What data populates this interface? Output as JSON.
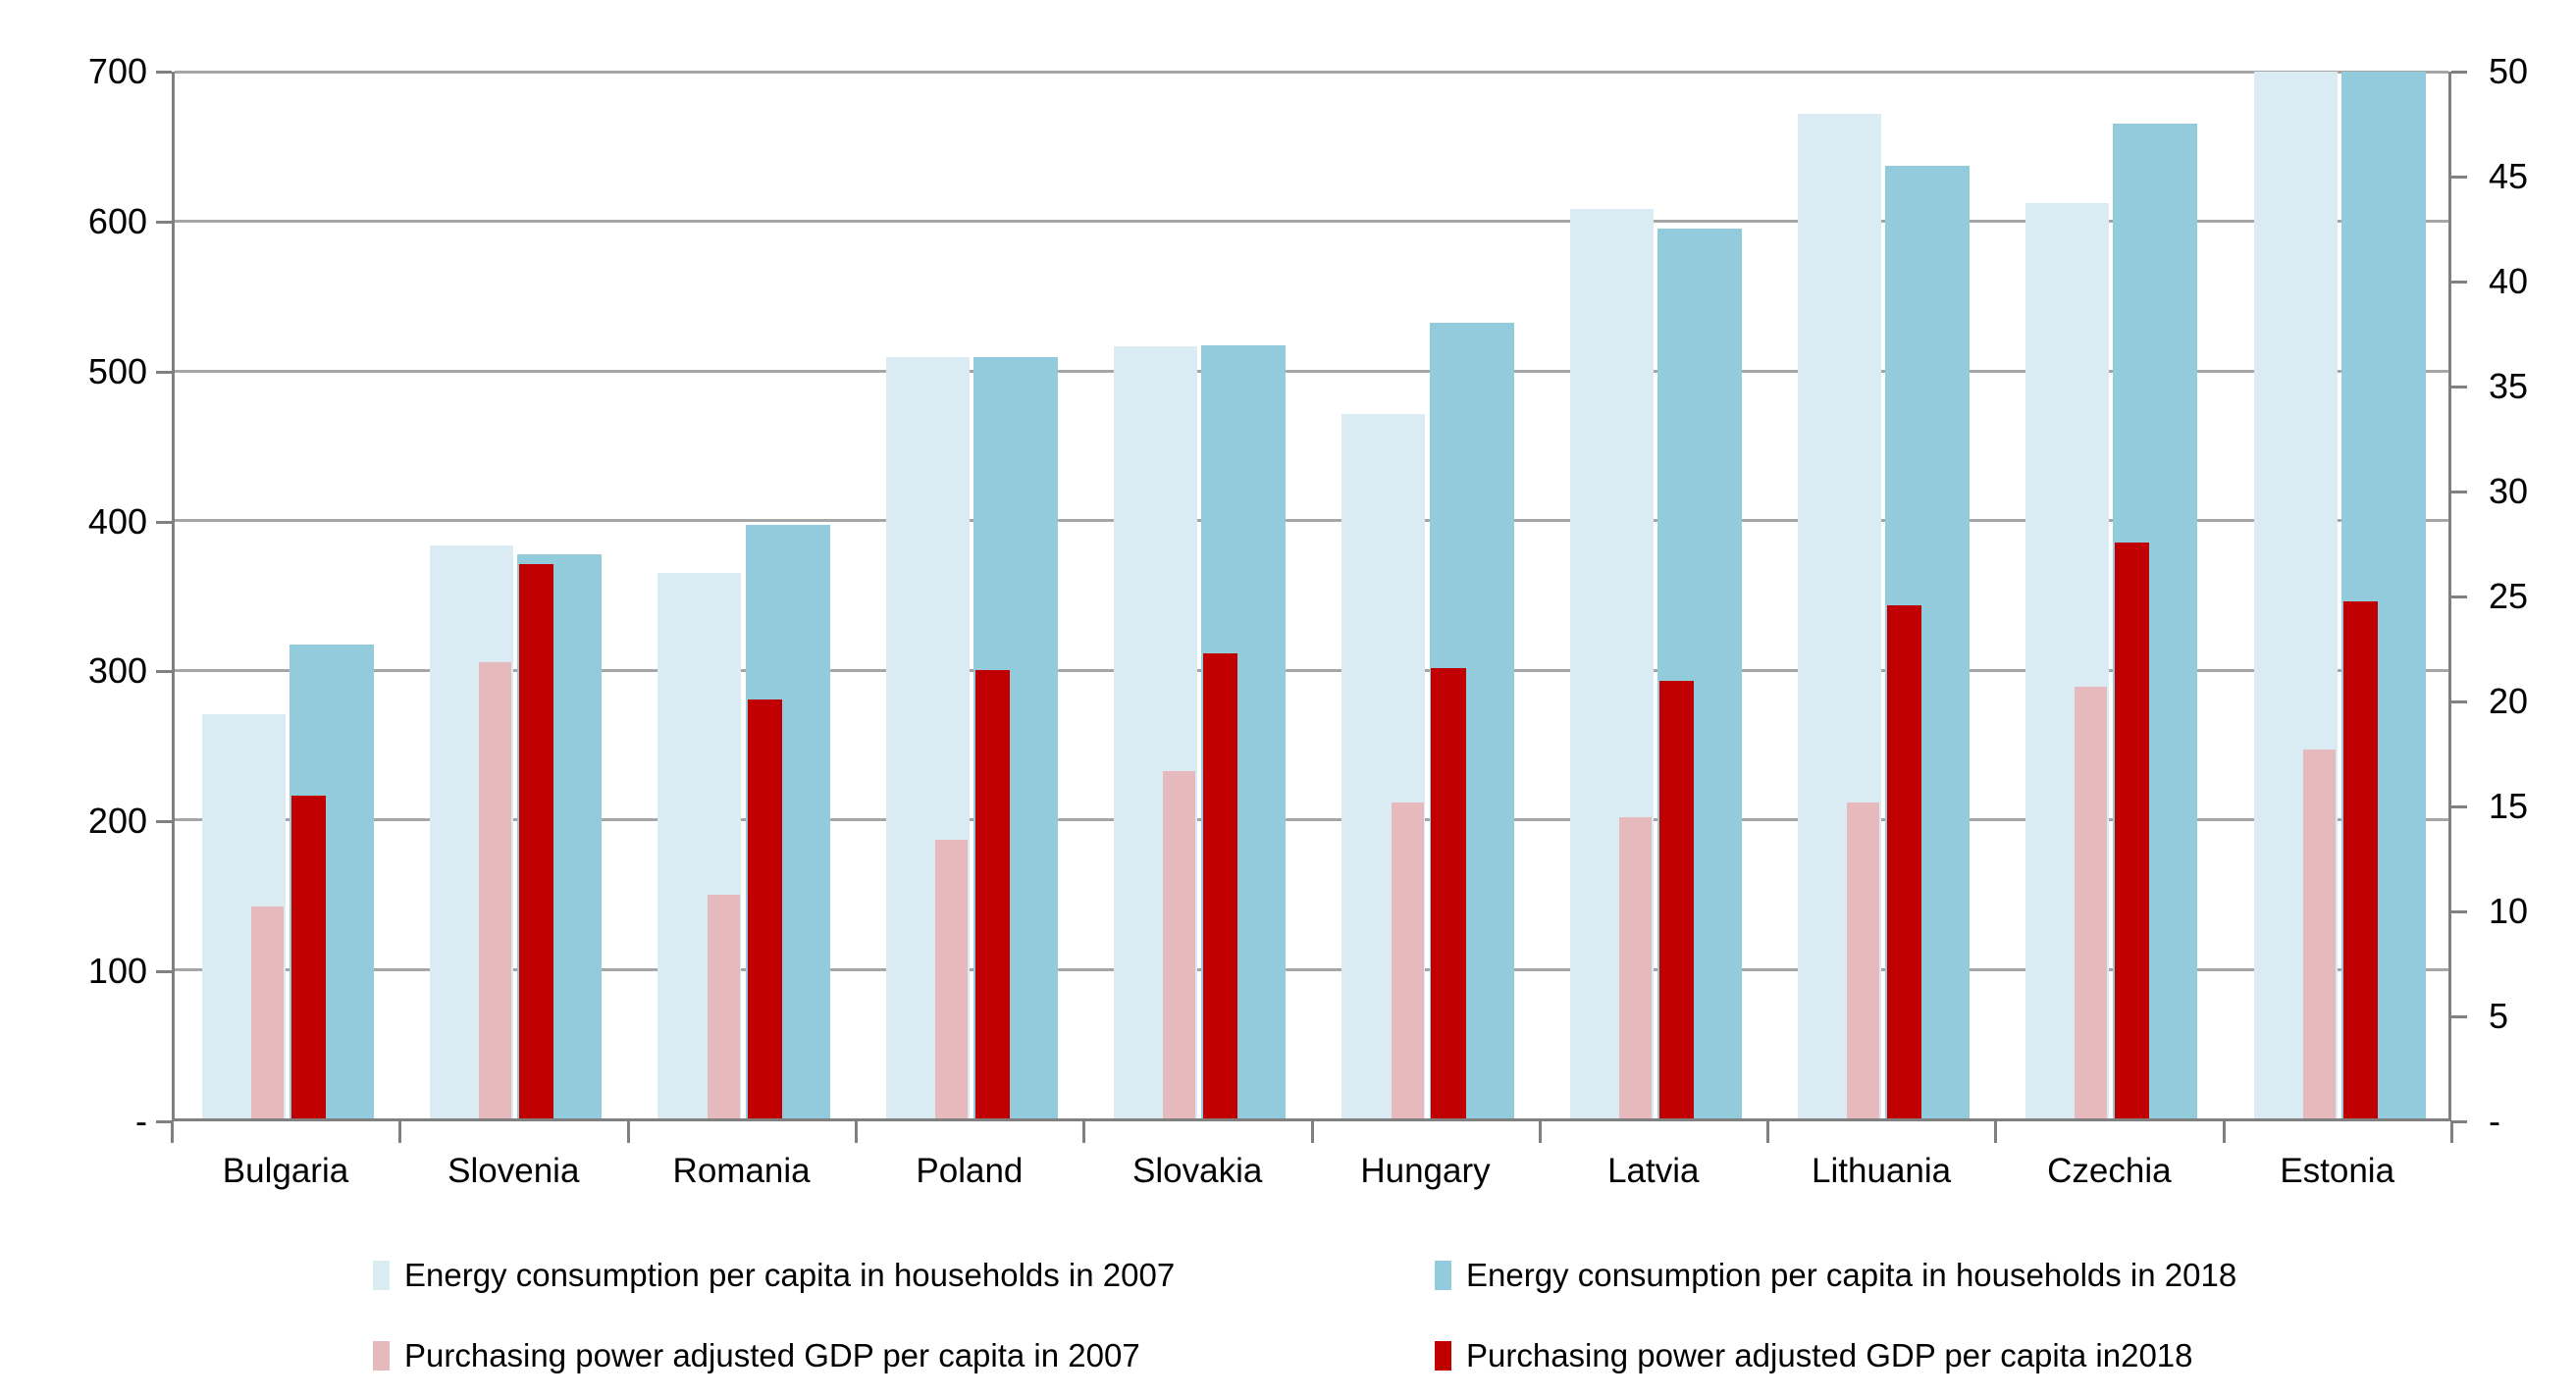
{
  "chart_data": {
    "type": "bar",
    "title": "",
    "categories": [
      "Bulgaria",
      "Slovenia",
      "Romania",
      "Poland",
      "Slovakia",
      "Hungary",
      "Latvia",
      "Lithuania",
      "Czechia",
      "Estonia"
    ],
    "series": [
      {
        "key": "energy-2007",
        "name": "Energy consumption per capita in households in 2007",
        "axis": "left",
        "color": "#DBEBF3",
        "values": [
          270,
          383,
          365,
          509,
          516,
          471,
          608,
          672,
          612,
          700
        ]
      },
      {
        "key": "energy-2018",
        "name": "Energy consumption per capita in households in 2018",
        "axis": "left",
        "color": "#92CBDC",
        "values": [
          317,
          377,
          397,
          509,
          517,
          532,
          595,
          637,
          665,
          700
        ]
      },
      {
        "key": "gdp-2007",
        "name": "Purchasing power adjusted GDP per capita in 2007",
        "axis": "right",
        "color": "#E6B9BC",
        "values": [
          10.1,
          21.8,
          10.7,
          13.3,
          16.6,
          15.1,
          14.4,
          15.1,
          20.6,
          17.6
        ]
      },
      {
        "key": "gdp-2018",
        "name": "Purchasing power adjusted GDP per capita in2018",
        "axis": "right",
        "color": "#C00000",
        "values": [
          15.4,
          26.5,
          20.0,
          21.4,
          22.2,
          21.5,
          20.9,
          24.5,
          27.5,
          24.7
        ]
      }
    ],
    "left_axis": {
      "min": 0,
      "max": 700,
      "tick_labels": [
        "700",
        "600",
        "500",
        "400",
        "300",
        "200",
        "100",
        "-"
      ],
      "tick_values": [
        700,
        600,
        500,
        400,
        300,
        200,
        100,
        0
      ]
    },
    "right_axis": {
      "min": 0,
      "max": 50,
      "tick_labels": [
        "50",
        "45",
        "40",
        "35",
        "30",
        "25",
        "20",
        "15",
        "10",
        "5",
        "-"
      ],
      "tick_values": [
        50,
        45,
        40,
        35,
        30,
        25,
        20,
        15,
        10,
        5,
        0
      ]
    },
    "grid": true,
    "gridline_color": "#A6A6A6",
    "axis_color": "#808080",
    "legend_position": "bottom"
  }
}
